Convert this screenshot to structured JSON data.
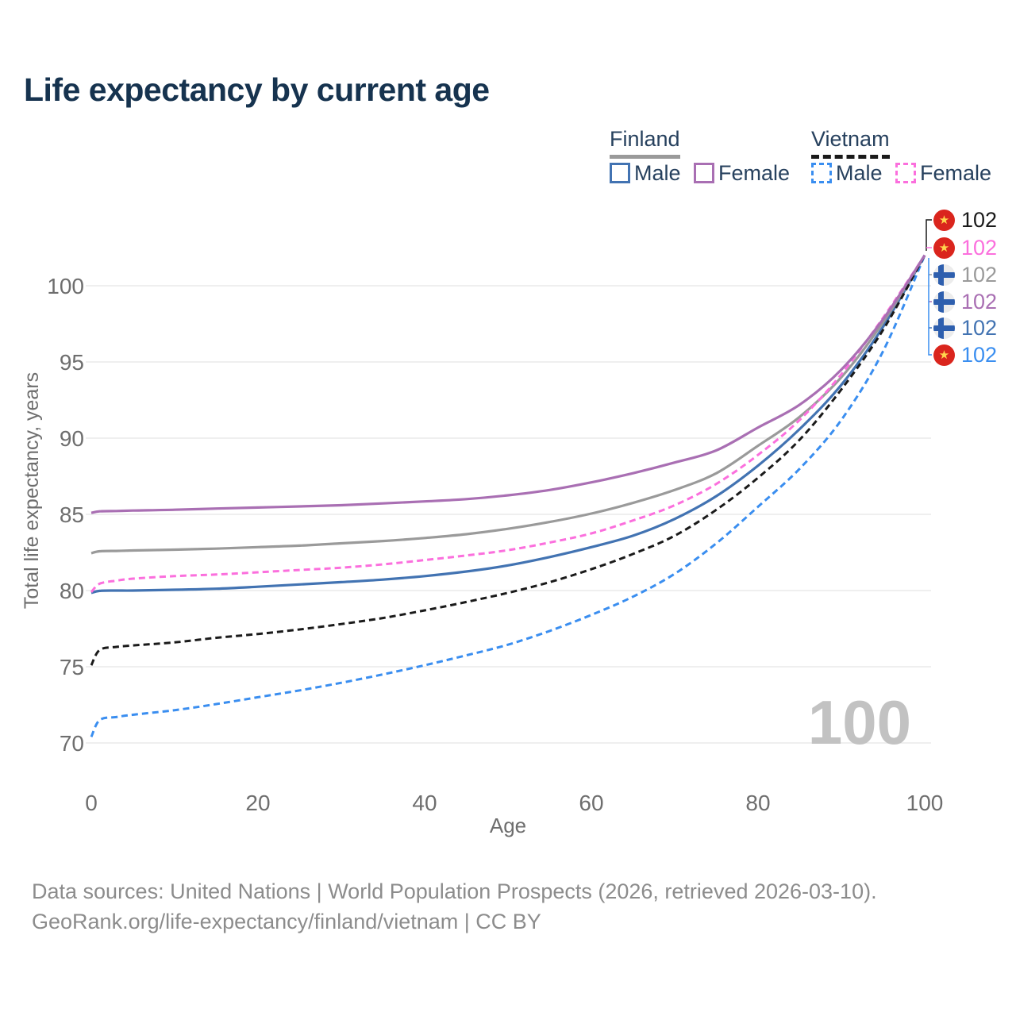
{
  "title": "Life expectancy by current age",
  "legend": {
    "groups": [
      {
        "label": "Finland",
        "line_style": "solid",
        "items": [
          {
            "label": "Male"
          },
          {
            "label": "Female"
          }
        ]
      },
      {
        "label": "Vietnam",
        "line_style": "dashed",
        "items": [
          {
            "label": "Male"
          },
          {
            "label": "Female"
          }
        ]
      }
    ]
  },
  "chart_data": {
    "type": "line",
    "title": "Life expectancy by current age",
    "xlabel": "Age",
    "ylabel": "Total life expectancy, years",
    "xlim": [
      0,
      100
    ],
    "ylim": [
      70,
      102
    ],
    "xticks": [
      0,
      20,
      40,
      60,
      80,
      100
    ],
    "yticks": [
      70,
      75,
      80,
      85,
      90,
      95,
      100
    ],
    "grid": "horizontal",
    "watermark": "100",
    "ages": [
      0,
      1,
      3,
      5,
      10,
      15,
      20,
      25,
      30,
      35,
      40,
      45,
      50,
      55,
      60,
      65,
      70,
      75,
      80,
      85,
      90,
      95,
      100
    ],
    "series": [
      {
        "id": "vietnam-male",
        "name": "Vietnam Male",
        "country": "Vietnam",
        "sex": "Male",
        "color": "#3a8ef0",
        "dash": "dashed",
        "values": [
          70.4,
          71.5,
          71.7,
          71.85,
          72.15,
          72.55,
          73.0,
          73.45,
          73.95,
          74.5,
          75.1,
          75.75,
          76.45,
          77.35,
          78.4,
          79.6,
          81.1,
          83.1,
          85.5,
          88.0,
          91.2,
          95.7,
          102
        ]
      },
      {
        "id": "finland-male",
        "name": "Finland Male",
        "country": "Finland",
        "sex": "Male",
        "color": "#4273b2",
        "dash": "solid",
        "values": [
          79.85,
          79.98,
          80.0,
          80.0,
          80.05,
          80.12,
          80.25,
          80.4,
          80.55,
          80.72,
          80.95,
          81.25,
          81.65,
          82.2,
          82.85,
          83.6,
          84.7,
          86.2,
          88.2,
          90.6,
          93.5,
          97.3,
          102
        ]
      },
      {
        "id": "finland-total",
        "name": "Finland",
        "country": "Finland",
        "sex": "Both",
        "color": "#9a9a9a",
        "dash": "solid",
        "values": [
          82.45,
          82.58,
          82.6,
          82.63,
          82.68,
          82.75,
          82.85,
          82.95,
          83.1,
          83.25,
          83.45,
          83.7,
          84.05,
          84.5,
          85.05,
          85.75,
          86.6,
          87.7,
          89.5,
          91.4,
          94.0,
          97.6,
          102
        ]
      },
      {
        "id": "vietnam-total",
        "name": "Vietnam",
        "country": "Vietnam",
        "sex": "Both",
        "color": "#1a1a1a",
        "dash": "dashed",
        "values": [
          75.1,
          76.1,
          76.3,
          76.4,
          76.6,
          76.9,
          77.15,
          77.45,
          77.8,
          78.2,
          78.7,
          79.25,
          79.85,
          80.55,
          81.4,
          82.4,
          83.6,
          85.3,
          87.4,
          89.9,
          93.2,
          97.1,
          102
        ]
      },
      {
        "id": "vietnam-female",
        "name": "Vietnam Female",
        "country": "Vietnam",
        "sex": "Female",
        "color": "#fb6fdd",
        "dash": "dashed",
        "values": [
          79.9,
          80.45,
          80.65,
          80.78,
          80.95,
          81.05,
          81.2,
          81.35,
          81.5,
          81.72,
          82.0,
          82.3,
          82.65,
          83.15,
          83.75,
          84.6,
          85.6,
          87.0,
          88.9,
          91.2,
          94.2,
          97.9,
          102
        ]
      },
      {
        "id": "finland-female",
        "name": "Finland Female",
        "country": "Finland",
        "sex": "Female",
        "color": "#a96fb3",
        "dash": "solid",
        "values": [
          85.1,
          85.2,
          85.22,
          85.25,
          85.3,
          85.38,
          85.45,
          85.52,
          85.6,
          85.72,
          85.85,
          86.0,
          86.25,
          86.6,
          87.1,
          87.7,
          88.4,
          89.2,
          90.7,
          92.2,
          94.5,
          97.8,
          102
        ]
      }
    ],
    "end_labels": [
      {
        "flag": "vn",
        "series": "Vietnam",
        "value": "102",
        "color": "#1a1a1a"
      },
      {
        "flag": "vn",
        "series": "Vietnam Female",
        "value": "102",
        "color": "#fb6fdd"
      },
      {
        "flag": "fi",
        "series": "Finland",
        "value": "102",
        "color": "#9a9a9a"
      },
      {
        "flag": "fi",
        "series": "Finland Female",
        "value": "102",
        "color": "#a96fb3"
      },
      {
        "flag": "fi",
        "series": "Finland Male",
        "value": "102",
        "color": "#4273b2"
      },
      {
        "flag": "vn",
        "series": "Vietnam Male",
        "value": "102",
        "color": "#3a8ef0"
      }
    ]
  },
  "footer": {
    "line1": "Data sources: United Nations | World Population Prospects (2026, retrieved 2026-03-10).",
    "line2": "GeoRank.org/life-expectancy/finland/vietnam | CC BY"
  },
  "colors": {
    "title": "#16334f",
    "legend_text": "#27415e",
    "axis_text": "#6e6e6e",
    "gridline": "#eaeaea",
    "watermark": "#c2c2c2",
    "footer_text": "#8c8c8c",
    "vietnam_flag_red": "#da251d",
    "vietnam_flag_star": "#ffd64d",
    "finland_flag_blue": "#2e5fae",
    "finland_flag_bg": "#ececec"
  }
}
